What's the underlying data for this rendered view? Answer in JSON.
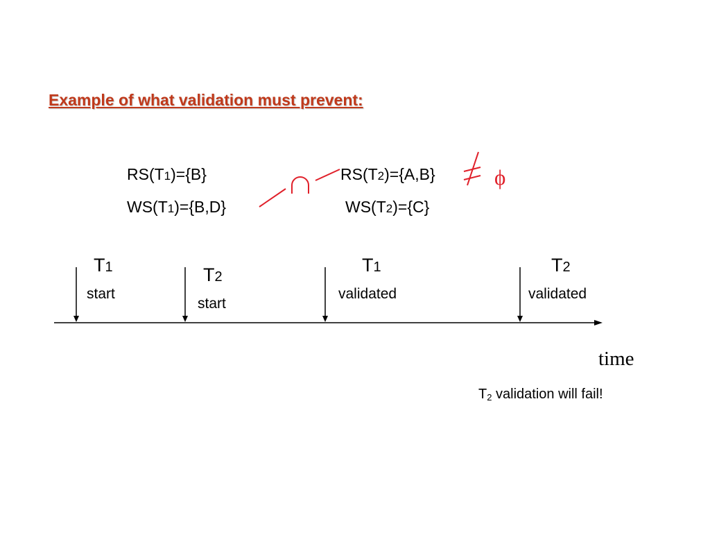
{
  "slide": {
    "title": "Example of what validation must prevent:",
    "sets": {
      "rs_t1": {
        "prefix": "RS(T",
        "sub": "1",
        "suffix": ")={B}"
      },
      "ws_t1": {
        "prefix": "WS(T",
        "sub": "1",
        "suffix": ")={B,D}"
      },
      "rs_t2": {
        "prefix": "RS(T",
        "sub": "2",
        "suffix": ")={A,B}"
      },
      "ws_t2": {
        "prefix": "WS(T",
        "sub": "2",
        "suffix": ")={C}"
      }
    },
    "symbols": {
      "intersection_icon": "intersection-icon",
      "not_equal_icon": "not-equal-icon",
      "empty_set": "ϕ",
      "color": "#e0202a"
    },
    "timeline": {
      "events": [
        {
          "label": "T",
          "sub": "1",
          "caption": "start"
        },
        {
          "label": "T",
          "sub": "2",
          "caption": "start"
        },
        {
          "label": "T",
          "sub": "1",
          "caption": "validated"
        },
        {
          "label": "T",
          "sub": "2",
          "caption": "validated"
        }
      ],
      "axis_label": "time"
    },
    "note": {
      "prefix": "T",
      "sub": "2",
      "suffix": " validation will fail!"
    },
    "colors": {
      "title": "#c0391b",
      "accent": "#e0202a",
      "text": "#000000"
    }
  }
}
